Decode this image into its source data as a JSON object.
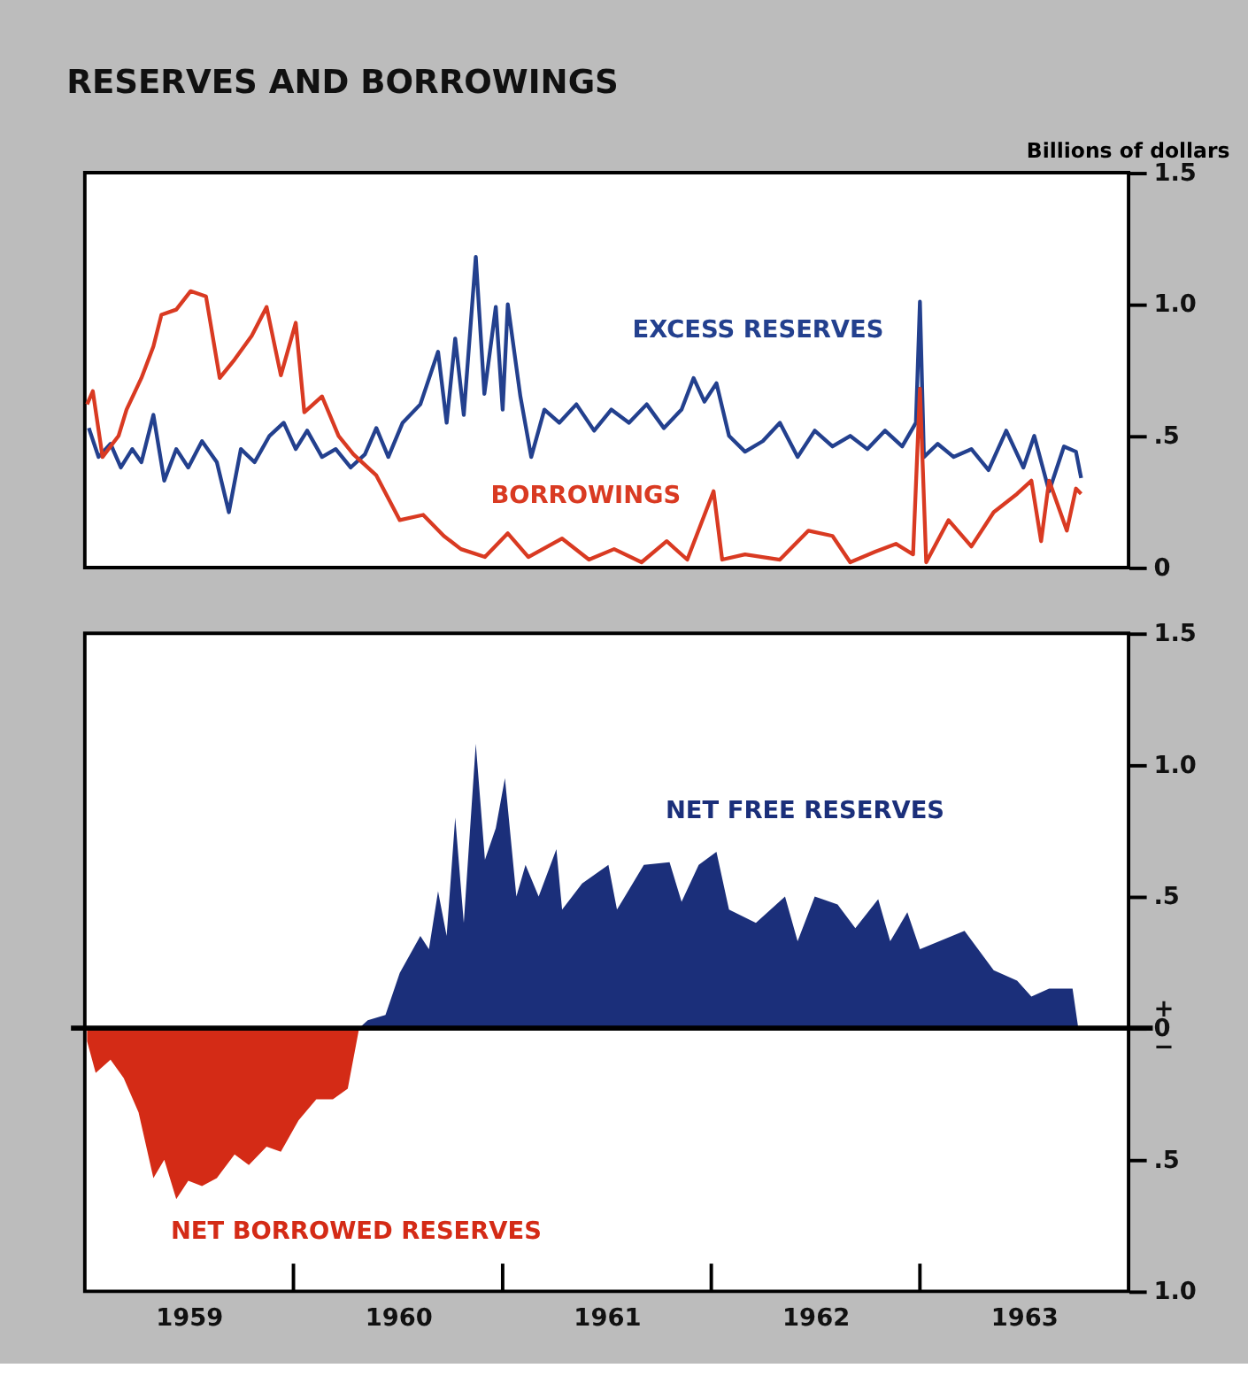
{
  "chart_data": [
    {
      "type": "line",
      "title": "RESERVES AND BORROWINGS",
      "ylabel": "Billions of dollars",
      "xlim": [
        "1959-01-01",
        "1964-01-01"
      ],
      "ylim": [
        0,
        1.5
      ],
      "yticks": [
        {
          "value": 0,
          "label": "0"
        },
        {
          "value": 0.5,
          "label": ".5"
        },
        {
          "value": 1.0,
          "label": "1.0"
        },
        {
          "value": 1.5,
          "label": "1.5"
        }
      ],
      "tick_labels": "y",
      "series": [
        {
          "name": "EXCESS RESERVES",
          "color": "#23408e",
          "x": [
            "1959-01-08",
            "1959-01-25",
            "1959-02-15",
            "1959-03-05",
            "1959-03-25",
            "1959-04-10",
            "1959-05-01",
            "1959-05-20",
            "1959-06-10",
            "1959-07-01",
            "1959-07-25",
            "1959-08-20",
            "1959-09-10",
            "1959-10-01",
            "1959-10-25",
            "1959-11-20",
            "1959-12-15",
            "1960-01-05",
            "1960-01-25",
            "1960-02-20",
            "1960-03-15",
            "1960-04-10",
            "1960-05-05",
            "1960-05-25",
            "1960-06-15",
            "1960-07-10",
            "1960-08-10",
            "1960-09-10",
            "1960-09-25",
            "1960-10-10",
            "1960-10-25",
            "1960-11-15",
            "1960-11-30",
            "1960-12-20",
            "1961-01-01",
            "1961-01-10",
            "1961-02-01",
            "1961-02-20",
            "1961-03-15",
            "1961-04-10",
            "1961-05-10",
            "1961-06-10",
            "1961-07-10",
            "1961-08-10",
            "1961-09-10",
            "1961-10-10",
            "1961-11-10",
            "1961-12-01",
            "1961-12-20",
            "1962-01-10",
            "1962-02-01",
            "1962-03-01",
            "1962-04-01",
            "1962-05-01",
            "1962-06-01",
            "1962-07-01",
            "1962-08-01",
            "1962-09-01",
            "1962-10-01",
            "1962-11-01",
            "1962-12-01",
            "1962-12-25",
            "1963-01-01",
            "1963-01-08",
            "1963-02-01",
            "1963-03-01",
            "1963-04-01",
            "1963-05-01",
            "1963-06-01",
            "1963-07-01",
            "1963-07-20",
            "1963-08-15",
            "1963-09-10",
            "1963-10-01",
            "1963-10-10"
          ],
          "values": [
            0.53,
            0.42,
            0.47,
            0.38,
            0.45,
            0.4,
            0.58,
            0.33,
            0.45,
            0.38,
            0.48,
            0.4,
            0.21,
            0.45,
            0.4,
            0.5,
            0.55,
            0.45,
            0.52,
            0.42,
            0.45,
            0.38,
            0.43,
            0.53,
            0.42,
            0.55,
            0.62,
            0.82,
            0.55,
            0.87,
            0.58,
            1.18,
            0.66,
            0.99,
            0.6,
            1.0,
            0.65,
            0.42,
            0.6,
            0.55,
            0.62,
            0.52,
            0.6,
            0.55,
            0.62,
            0.53,
            0.6,
            0.72,
            0.63,
            0.7,
            0.5,
            0.44,
            0.48,
            0.55,
            0.42,
            0.52,
            0.46,
            0.5,
            0.45,
            0.52,
            0.46,
            0.55,
            1.01,
            0.42,
            0.47,
            0.42,
            0.45,
            0.37,
            0.52,
            0.38,
            0.5,
            0.29,
            0.46,
            0.44,
            0.34
          ]
        },
        {
          "name": "BORROWINGS",
          "color": "#d93a22",
          "x": [
            "1959-01-05",
            "1959-01-15",
            "1959-02-01",
            "1959-03-01",
            "1959-03-15",
            "1959-04-10",
            "1959-05-01",
            "1959-05-15",
            "1959-06-10",
            "1959-07-05",
            "1959-08-01",
            "1959-08-25",
            "1959-09-20",
            "1959-10-20",
            "1959-11-15",
            "1959-12-10",
            "1960-01-05",
            "1960-01-20",
            "1960-02-20",
            "1960-03-20",
            "1960-04-15",
            "1960-05-25",
            "1960-07-05",
            "1960-08-15",
            "1960-09-20",
            "1960-10-20",
            "1960-12-01",
            "1961-01-10",
            "1961-02-15",
            "1961-04-15",
            "1961-06-01",
            "1961-07-15",
            "1961-09-01",
            "1961-10-15",
            "1961-11-20",
            "1962-01-05",
            "1962-01-20",
            "1962-03-01",
            "1962-05-01",
            "1962-06-20",
            "1962-08-01",
            "1962-09-01",
            "1962-10-15",
            "1962-11-20",
            "1962-12-20",
            "1963-01-01",
            "1963-01-12",
            "1963-02-20",
            "1963-04-01",
            "1963-05-10",
            "1963-06-20",
            "1963-07-15",
            "1963-08-01",
            "1963-08-15",
            "1963-09-15",
            "1963-10-01",
            "1963-10-10"
          ],
          "values": [
            0.62,
            0.67,
            0.42,
            0.5,
            0.6,
            0.72,
            0.84,
            0.96,
            0.98,
            1.05,
            1.03,
            0.72,
            0.79,
            0.88,
            0.99,
            0.73,
            0.93,
            0.59,
            0.65,
            0.5,
            0.43,
            0.35,
            0.18,
            0.2,
            0.12,
            0.07,
            0.04,
            0.13,
            0.04,
            0.11,
            0.03,
            0.07,
            0.02,
            0.1,
            0.03,
            0.29,
            0.03,
            0.05,
            0.03,
            0.14,
            0.12,
            0.02,
            0.06,
            0.09,
            0.05,
            0.68,
            0.02,
            0.18,
            0.08,
            0.21,
            0.28,
            0.33,
            0.1,
            0.33,
            0.14,
            0.3,
            0.28
          ]
        }
      ]
    },
    {
      "type": "area",
      "xlim": [
        "1959-01-01",
        "1964-01-01"
      ],
      "ylim": [
        -1.0,
        1.5
      ],
      "xticks": [
        {
          "value": "1960-01-01",
          "label": null
        },
        {
          "value": "1961-01-01",
          "label": null
        },
        {
          "value": "1962-01-01",
          "label": null
        },
        {
          "value": "1963-01-01",
          "label": null
        },
        {
          "value": "1959-07-02",
          "label": "1959"
        },
        {
          "value": "1960-07-02",
          "label": "1960"
        },
        {
          "value": "1961-07-02",
          "label": "1961"
        },
        {
          "value": "1962-07-02",
          "label": "1962"
        },
        {
          "value": "1963-07-02",
          "label": "1963"
        }
      ],
      "yticks": [
        {
          "value": -1.0,
          "label": "1.0"
        },
        {
          "value": -0.5,
          "label": ".5"
        },
        {
          "value": 0,
          "label": "+\n0\n−"
        },
        {
          "value": 0.5,
          "label": ".5"
        },
        {
          "value": 1.0,
          "label": "1.0"
        },
        {
          "value": 1.5,
          "label": "1.5"
        }
      ],
      "ref_lines": [
        {
          "axis": "y",
          "value": 0,
          "color": "#000000"
        }
      ],
      "series": [
        {
          "name": "NET FREE RESERVES",
          "color": "#1b2f7a",
          "x": [
            "1960-04-25",
            "1960-05-10",
            "1960-06-10",
            "1960-07-05",
            "1960-08-10",
            "1960-08-25",
            "1960-09-10",
            "1960-09-25",
            "1960-10-10",
            "1960-10-25",
            "1960-11-15",
            "1960-12-01",
            "1960-12-20",
            "1961-01-05",
            "1961-01-25",
            "1961-02-10",
            "1961-03-05",
            "1961-04-05",
            "1961-04-15",
            "1961-05-20",
            "1961-07-05",
            "1961-07-20",
            "1961-09-05",
            "1961-10-20",
            "1961-11-10",
            "1961-12-10",
            "1962-01-10",
            "1962-02-01",
            "1962-03-20",
            "1962-05-10",
            "1962-06-01",
            "1962-07-01",
            "1962-08-10",
            "1962-09-10",
            "1962-10-20",
            "1962-11-10",
            "1962-12-10",
            "1963-01-01",
            "1963-03-20",
            "1963-05-10",
            "1963-06-20",
            "1963-07-15",
            "1963-08-15",
            "1963-09-25",
            "1963-10-05"
          ],
          "values": [
            0,
            0.03,
            0.05,
            0.21,
            0.35,
            0.3,
            0.52,
            0.35,
            0.8,
            0.4,
            1.08,
            0.64,
            0.76,
            0.95,
            0.5,
            0.62,
            0.5,
            0.68,
            0.45,
            0.55,
            0.62,
            0.45,
            0.62,
            0.63,
            0.48,
            0.62,
            0.67,
            0.45,
            0.4,
            0.5,
            0.33,
            0.5,
            0.47,
            0.38,
            0.49,
            0.33,
            0.44,
            0.3,
            0.37,
            0.22,
            0.18,
            0.12,
            0.15,
            0.15,
            0
          ]
        },
        {
          "name": "NET BORROWED RESERVES",
          "color": "#d42b16",
          "x": [
            "1959-01-05",
            "1959-01-20",
            "1959-02-15",
            "1959-03-10",
            "1959-04-05",
            "1959-05-01",
            "1959-05-20",
            "1959-06-10",
            "1959-07-01",
            "1959-07-25",
            "1959-08-20",
            "1959-09-20",
            "1959-10-15",
            "1959-11-15",
            "1959-12-10",
            "1960-01-10",
            "1960-02-10",
            "1960-03-10",
            "1960-04-05",
            "1960-04-25"
          ],
          "values": [
            -0.05,
            -0.17,
            -0.12,
            -0.19,
            -0.32,
            -0.57,
            -0.5,
            -0.65,
            -0.58,
            -0.6,
            -0.57,
            -0.48,
            -0.52,
            -0.45,
            -0.47,
            -0.35,
            -0.27,
            -0.27,
            -0.23,
            0
          ]
        }
      ]
    }
  ]
}
